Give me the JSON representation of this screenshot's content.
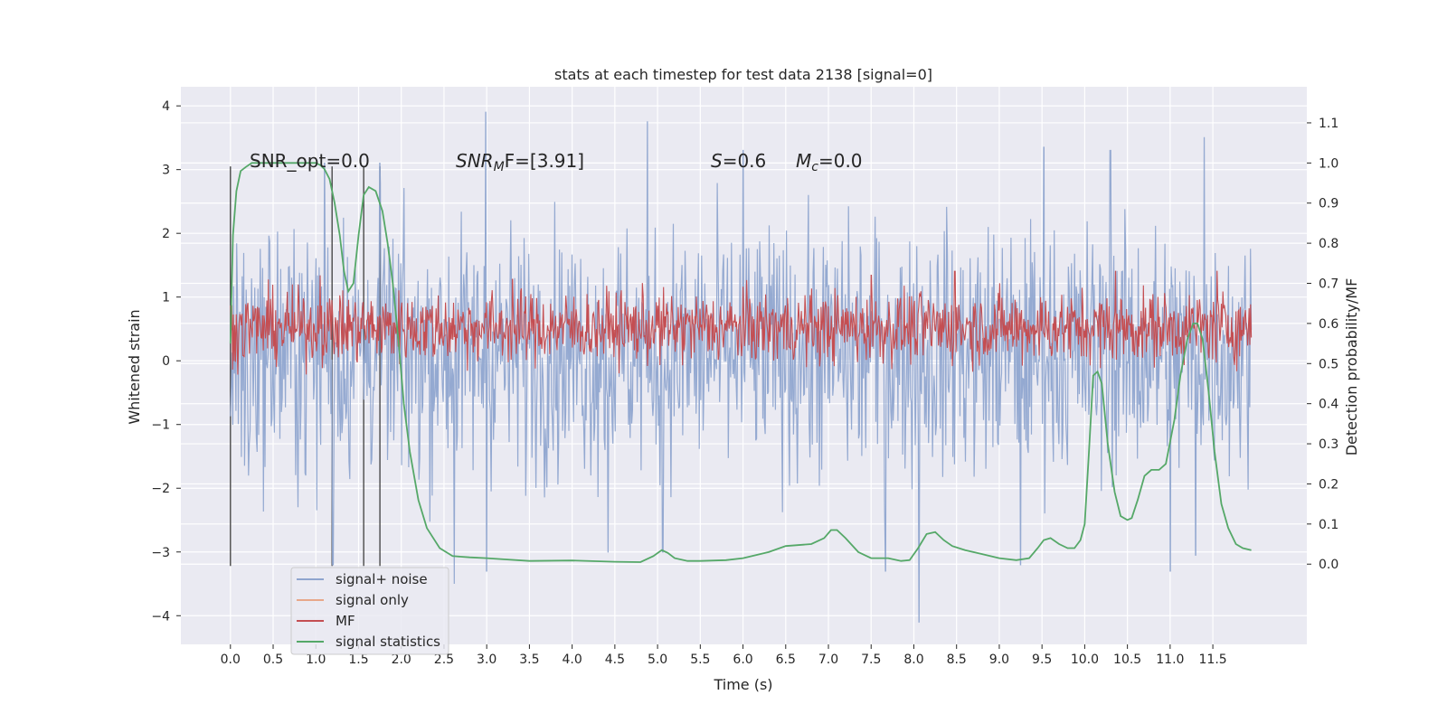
{
  "chart_data": {
    "type": "line",
    "title": "stats at each timestep for test data 2138 [signal=0]",
    "xlabel": "Time (s)",
    "ylabel_left": "Whitened strain",
    "ylabel_right": "Detection probability/MF",
    "xlim": [
      -0.58,
      12.6
    ],
    "ylim_left": [
      -4.45,
      4.3
    ],
    "ylim_right": [
      -0.2,
      1.19
    ],
    "x_ticks": [
      0.0,
      0.5,
      1.0,
      1.5,
      2.0,
      2.5,
      3.0,
      3.5,
      4.0,
      4.5,
      5.0,
      5.5,
      6.0,
      6.5,
      7.0,
      7.5,
      8.0,
      8.5,
      9.0,
      9.5,
      10.0,
      10.5,
      11.0,
      11.5
    ],
    "x_tick_labels": [
      "0.0",
      "0.5",
      "1.0",
      "1.5",
      "2.0",
      "2.5",
      "3.0",
      "3.5",
      "4.0",
      "4.5",
      "5.0",
      "5.5",
      "6.0",
      "6.5",
      "7.0",
      "7.5",
      "8.0",
      "8.5",
      "9.0",
      "9.5",
      "10.0",
      "10.5",
      "11.0",
      "11.5"
    ],
    "y_left_ticks": [
      -4,
      -3,
      -2,
      -1,
      0,
      1,
      2,
      3,
      4
    ],
    "y_left_tick_labels": [
      "−4",
      "−3",
      "−2",
      "−1",
      "0",
      "1",
      "2",
      "3",
      "4"
    ],
    "y_right_ticks": [
      0.0,
      0.1,
      0.2,
      0.3,
      0.4,
      0.5,
      0.6,
      0.7,
      0.8,
      0.9,
      1.0,
      1.1
    ],
    "y_right_tick_labels": [
      "0.0",
      "0.1",
      "0.2",
      "0.3",
      "0.4",
      "0.5",
      "0.6",
      "0.7",
      "0.8",
      "0.9",
      "1.0",
      "1.1"
    ],
    "grid": true,
    "legend_position": "lower-left",
    "legend": [
      {
        "label": "signal+ noise",
        "color": "#8fa5cf"
      },
      {
        "label": "signal only",
        "color": "#e8a88a"
      },
      {
        "label": "MF",
        "color": "#c44e52"
      },
      {
        "label": "signal statistics",
        "color": "#55a868"
      }
    ],
    "annotations": {
      "snr_opt": "SNR_opt=0.0",
      "snr_mf_main": "SNR",
      "snr_mf_sub": "M",
      "snr_mf_rest": "F=[3.91]",
      "s_var": "S",
      "s_rest": "=0.6",
      "mc_var": "M",
      "mc_sub": "c",
      "mc_rest": "=0.0"
    },
    "vertical_lines_x": [
      0.0,
      1.19,
      1.56,
      1.75
    ],
    "series": [
      {
        "name": "signal+ noise",
        "axis": "left",
        "color": "#8fa5cf",
        "x_range": [
          0.0,
          11.95
        ],
        "typical_band": [
          -1.4,
          1.7
        ],
        "extremes": [
          {
            "x": 2.99,
            "y": 3.9
          },
          {
            "x": 4.88,
            "y": 3.75
          },
          {
            "x": 11.4,
            "y": 3.5
          },
          {
            "x": 6.0,
            "y": 3.3
          },
          {
            "x": 9.52,
            "y": 3.35
          },
          {
            "x": 10.3,
            "y": 3.3
          },
          {
            "x": 1.1,
            "y": 3.1
          },
          {
            "x": 1.75,
            "y": 3.1
          },
          {
            "x": 8.06,
            "y": -4.1
          },
          {
            "x": 2.62,
            "y": -3.5
          },
          {
            "x": 3.0,
            "y": -3.3
          },
          {
            "x": 7.67,
            "y": -3.3
          },
          {
            "x": 11.0,
            "y": -3.3
          },
          {
            "x": 1.2,
            "y": -3.2
          },
          {
            "x": 9.25,
            "y": -3.2
          },
          {
            "x": 11.3,
            "y": -3.05
          },
          {
            "x": 4.42,
            "y": -3.0
          },
          {
            "x": 5.06,
            "y": -3.0
          }
        ]
      },
      {
        "name": "MF",
        "axis": "right",
        "color": "#c44e52",
        "x_range": [
          0.0,
          11.95
        ],
        "typical_band": [
          0.52,
          0.66
        ],
        "extremes": [
          {
            "x": 1.05,
            "y": 0.72
          },
          {
            "x": 3.3,
            "y": 0.71
          },
          {
            "x": 7.5,
            "y": 0.72
          },
          {
            "x": 8.48,
            "y": 0.73
          },
          {
            "x": 10.36,
            "y": 0.73
          },
          {
            "x": 11.55,
            "y": 0.73
          },
          {
            "x": 0.15,
            "y": 0.52
          }
        ]
      },
      {
        "name": "signal statistics",
        "axis": "right",
        "color": "#55a868",
        "x": [
          0.0,
          0.03,
          0.07,
          0.12,
          0.18,
          0.25,
          0.4,
          0.6,
          0.85,
          1.0,
          1.05,
          1.1,
          1.16,
          1.22,
          1.28,
          1.33,
          1.38,
          1.44,
          1.5,
          1.56,
          1.62,
          1.7,
          1.78,
          1.84,
          1.9,
          1.97,
          2.03,
          2.1,
          2.2,
          2.3,
          2.45,
          2.6,
          2.8,
          3.0,
          3.2,
          3.5,
          4.0,
          4.5,
          4.8,
          4.95,
          5.05,
          5.12,
          5.2,
          5.35,
          5.5,
          5.8,
          6.0,
          6.3,
          6.5,
          6.8,
          6.95,
          7.03,
          7.1,
          7.2,
          7.35,
          7.5,
          7.7,
          7.85,
          7.95,
          8.05,
          8.15,
          8.25,
          8.35,
          8.45,
          8.6,
          8.8,
          9.0,
          9.2,
          9.35,
          9.45,
          9.52,
          9.6,
          9.7,
          9.8,
          9.88,
          9.95,
          10.0,
          10.05,
          10.1,
          10.15,
          10.2,
          10.27,
          10.35,
          10.42,
          10.5,
          10.55,
          10.62,
          10.7,
          10.78,
          10.87,
          10.95,
          11.05,
          11.12,
          11.2,
          11.27,
          11.32,
          11.38,
          11.45,
          11.52,
          11.6,
          11.68,
          11.77,
          11.85,
          11.95
        ],
        "y": [
          0.55,
          0.82,
          0.93,
          0.98,
          0.99,
          1.0,
          1.0,
          1.0,
          1.0,
          1.0,
          0.995,
          0.985,
          0.96,
          0.9,
          0.82,
          0.73,
          0.68,
          0.7,
          0.82,
          0.92,
          0.94,
          0.93,
          0.88,
          0.8,
          0.7,
          0.55,
          0.4,
          0.28,
          0.16,
          0.09,
          0.04,
          0.02,
          0.017,
          0.015,
          0.012,
          0.008,
          0.009,
          0.006,
          0.005,
          0.02,
          0.035,
          0.028,
          0.015,
          0.008,
          0.008,
          0.01,
          0.015,
          0.03,
          0.045,
          0.05,
          0.065,
          0.085,
          0.085,
          0.065,
          0.03,
          0.015,
          0.015,
          0.008,
          0.01,
          0.04,
          0.075,
          0.08,
          0.06,
          0.045,
          0.035,
          0.025,
          0.015,
          0.01,
          0.015,
          0.04,
          0.06,
          0.065,
          0.05,
          0.04,
          0.04,
          0.06,
          0.1,
          0.28,
          0.47,
          0.48,
          0.45,
          0.3,
          0.18,
          0.12,
          0.11,
          0.115,
          0.16,
          0.22,
          0.235,
          0.235,
          0.25,
          0.36,
          0.47,
          0.56,
          0.6,
          0.6,
          0.56,
          0.43,
          0.28,
          0.15,
          0.09,
          0.05,
          0.04,
          0.035
        ]
      }
    ]
  }
}
